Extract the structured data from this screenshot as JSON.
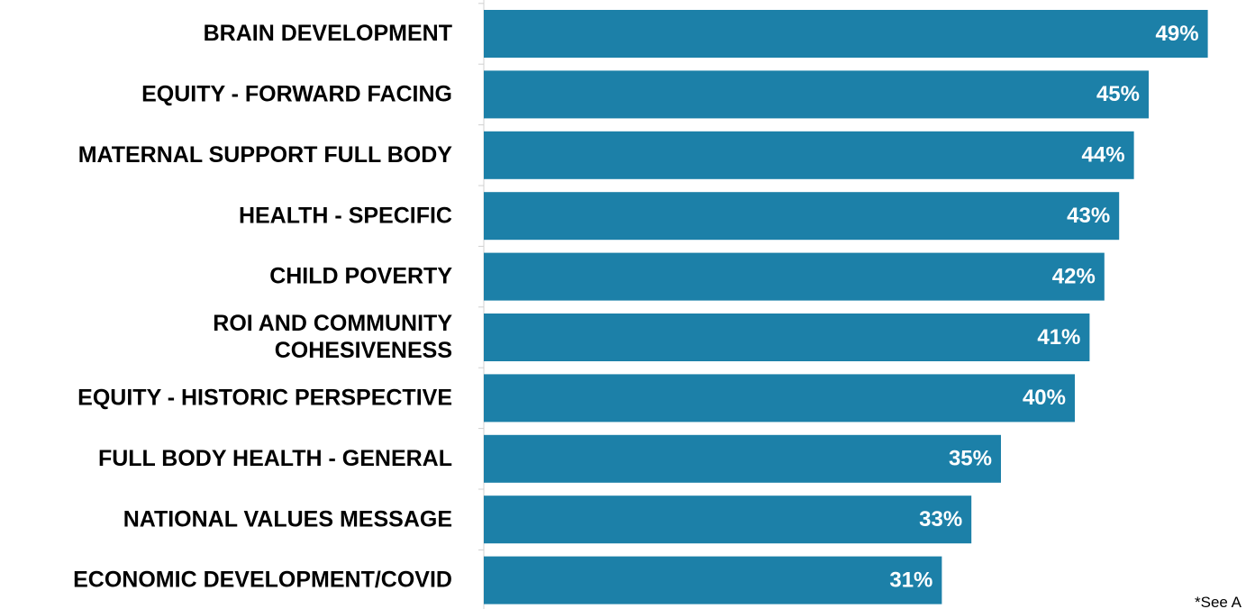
{
  "chart_data": {
    "type": "bar",
    "orientation": "horizontal",
    "title": "",
    "xlabel": "",
    "ylabel": "",
    "categories": [
      [
        "BRAIN DEVELOPMENT"
      ],
      [
        "EQUITY - FORWARD FACING"
      ],
      [
        "MATERNAL SUPPORT FULL BODY"
      ],
      [
        "HEALTH - SPECIFIC"
      ],
      [
        "CHILD POVERTY"
      ],
      [
        "ROI AND COMMUNITY",
        "COHESIVENESS"
      ],
      [
        "EQUITY - HISTORIC PERSPECTIVE"
      ],
      [
        "FULL BODY HEALTH - GENERAL"
      ],
      [
        "NATIONAL VALUES MESSAGE"
      ],
      [
        "ECONOMIC DEVELOPMENT/COVID"
      ]
    ],
    "values": [
      49,
      45,
      44,
      43,
      42,
      41,
      40,
      35,
      33,
      31
    ],
    "value_labels": [
      "49%",
      "45%",
      "44%",
      "43%",
      "42%",
      "41%",
      "40%",
      "35%",
      "33%",
      "31%"
    ],
    "value_unit": "%",
    "bar_color": "#1c80a8",
    "label_color": "#ffffff",
    "grid": false,
    "legend": "none"
  },
  "footnote": "*See A"
}
